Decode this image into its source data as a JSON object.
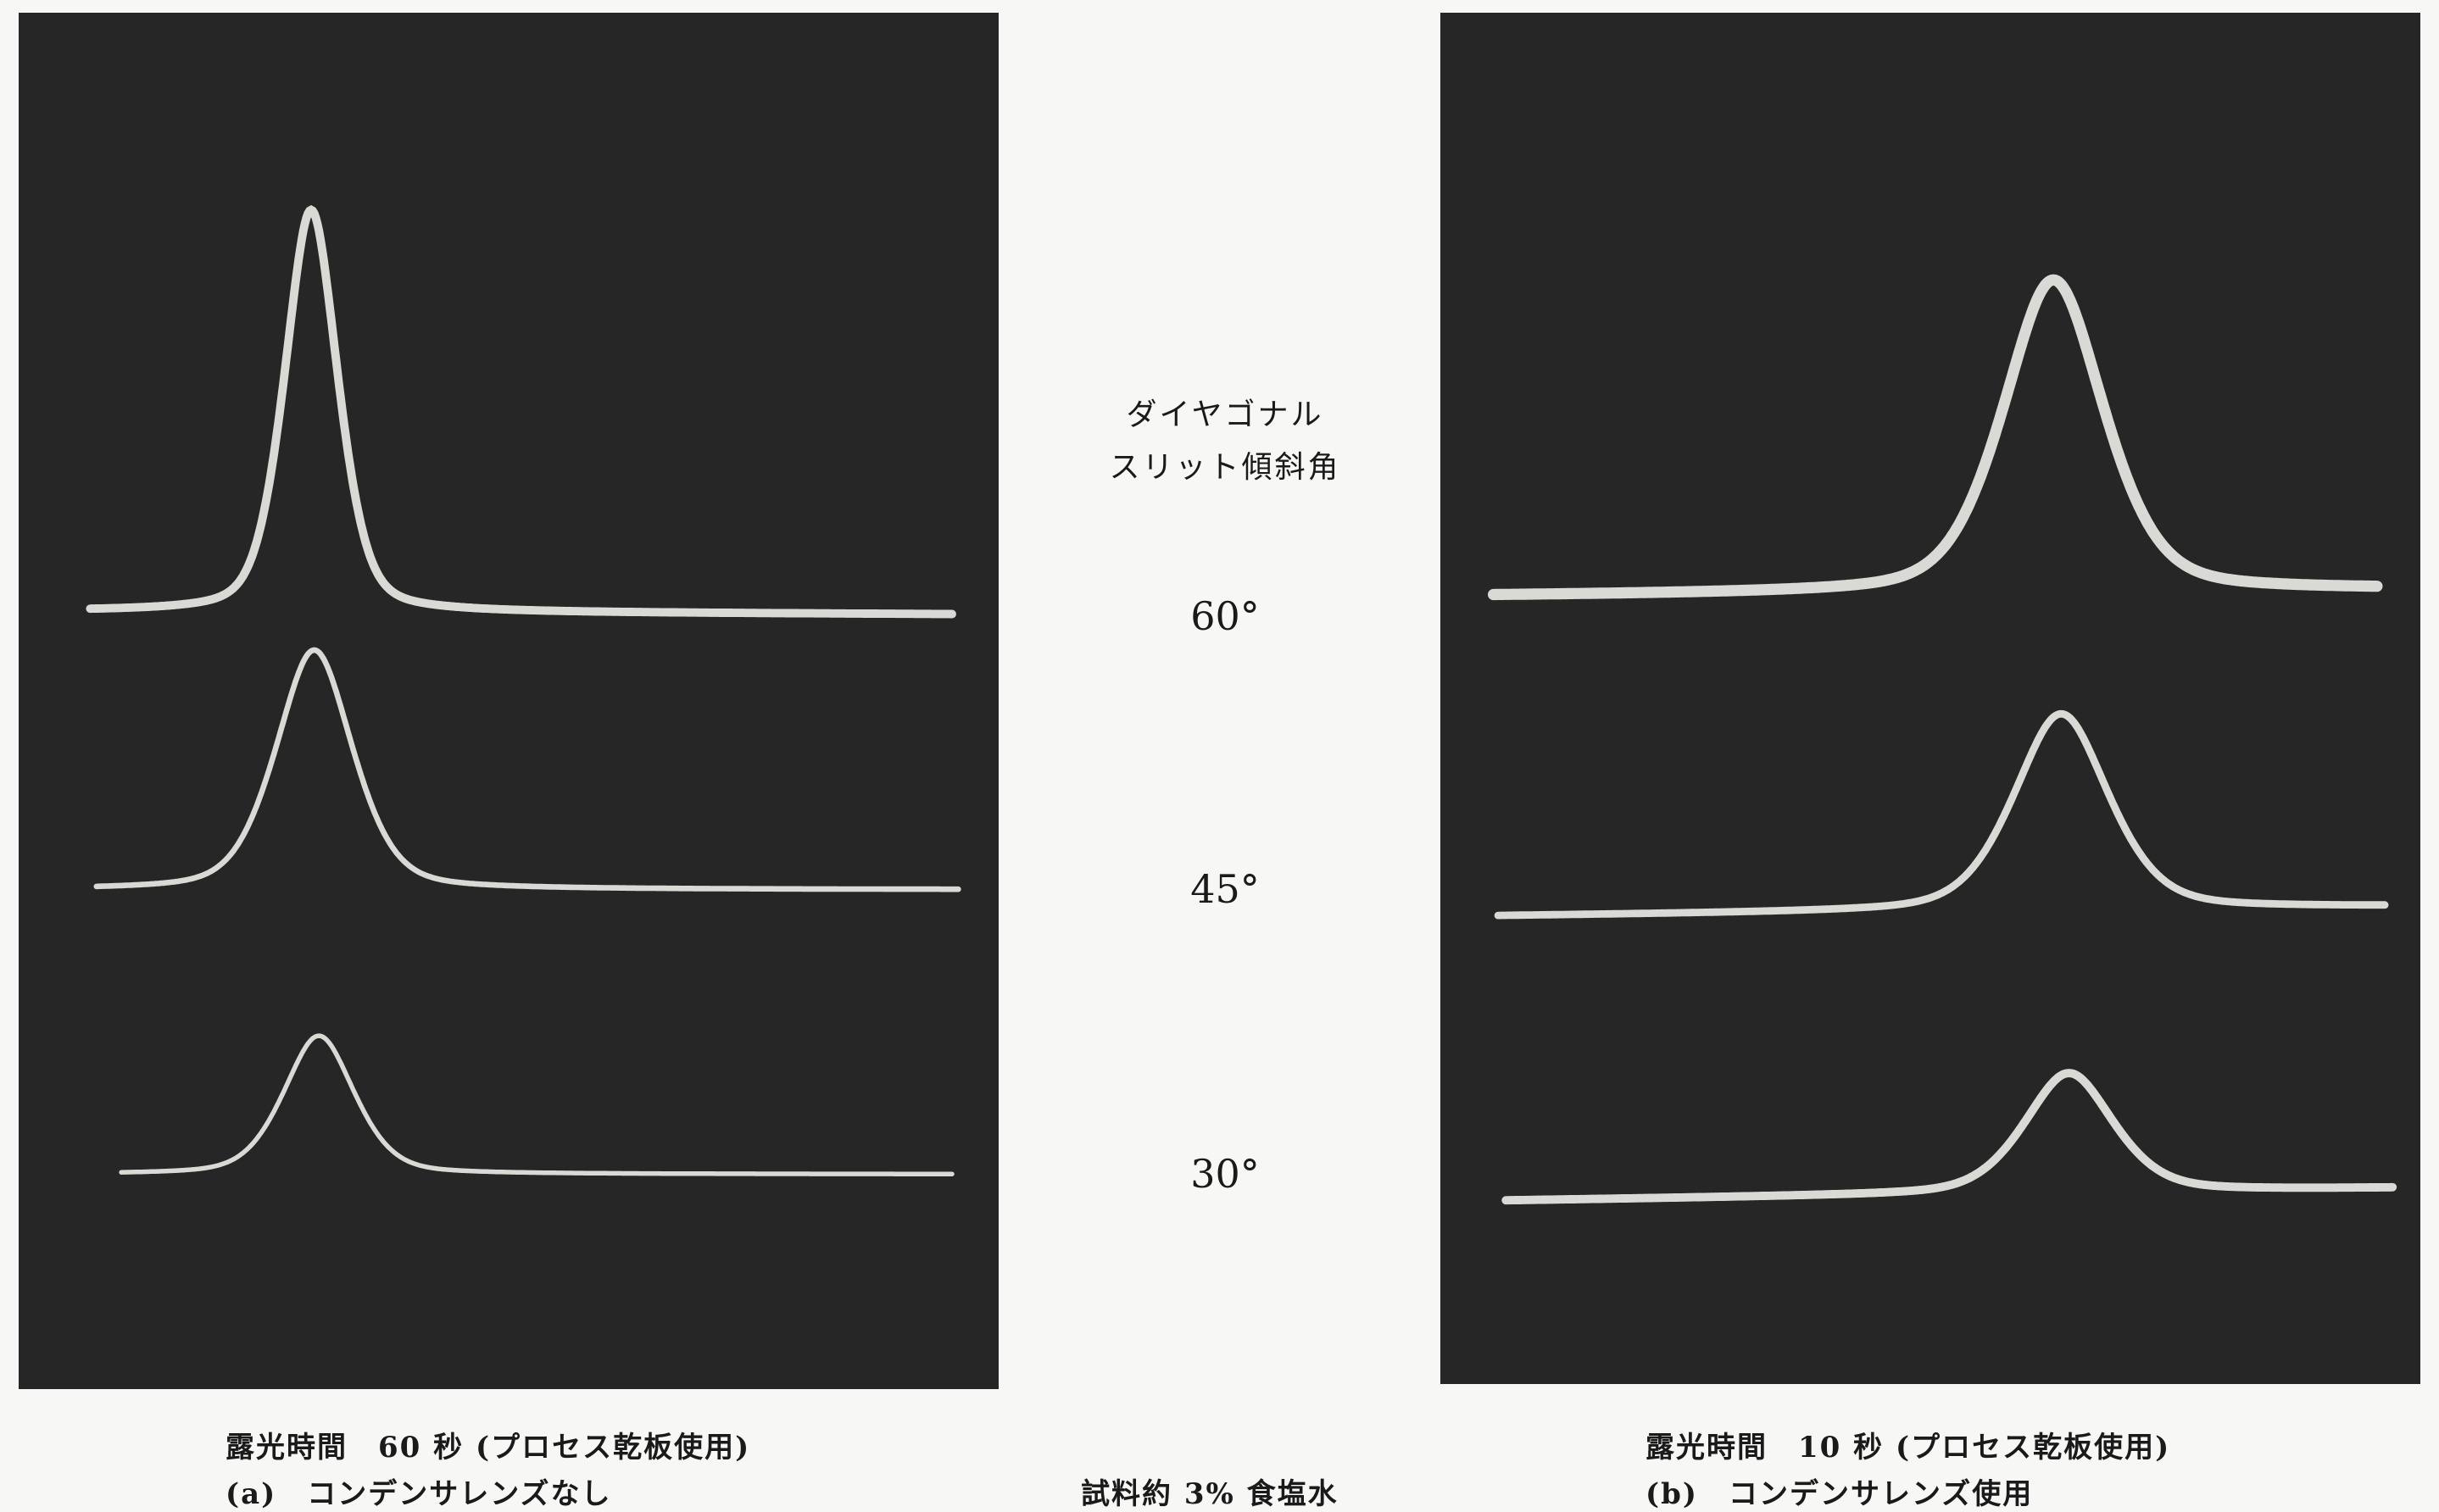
{
  "center": {
    "heading": [
      "ダイヤゴナル",
      "スリット傾斜角"
    ],
    "angles": [
      "60°",
      "45°",
      "30°"
    ],
    "sample": "試料約 3% 食塩水"
  },
  "left": {
    "caption": "露光時間　60 秒 (プロセス乾板使用)",
    "label": "(a)　コンデンサレンズなし"
  },
  "right": {
    "caption": "露光時間　10 秒 (プロセス乾板使用)",
    "label": "(b)　コンデンサレンズ使用"
  }
}
